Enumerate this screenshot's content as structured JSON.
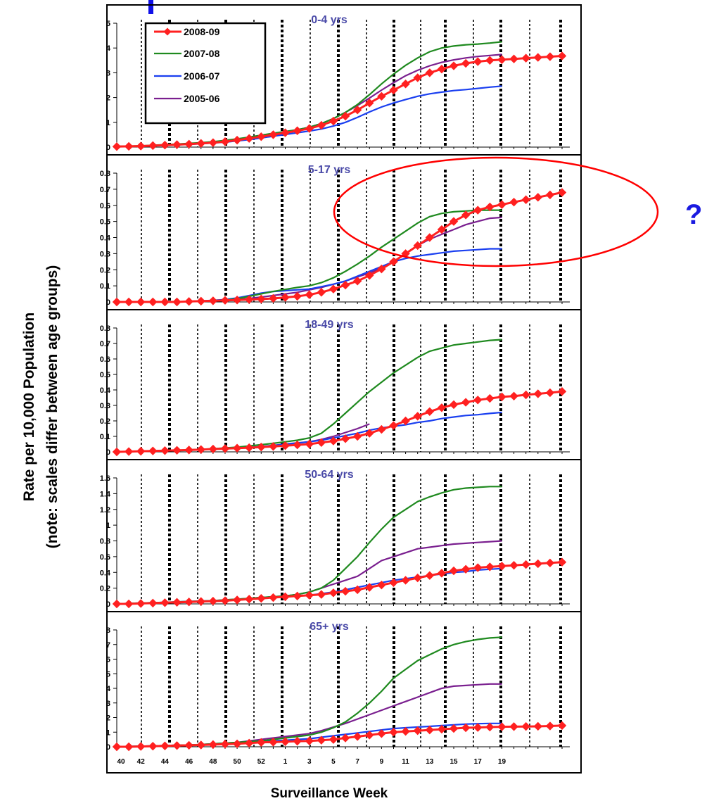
{
  "annotation": {
    "question_mark": "?",
    "highlight_color": "#ff0000"
  },
  "chart_data": {
    "type": "line",
    "xlabel": "Surveillance Week",
    "ylabel_line1": "Rate per 10,000 Population",
    "ylabel_line2": "(note: scales differ between age groups)",
    "x_tick_labels": [
      "40",
      "42",
      "44",
      "46",
      "48",
      "50",
      "52",
      "1",
      "3",
      "5",
      "7",
      "9",
      "11",
      "13",
      "15",
      "17",
      "19"
    ],
    "legend": {
      "placement": "top-left of first panel",
      "entries": [
        "2008-09",
        "2007-08",
        "2006-07",
        "2005-06"
      ]
    },
    "series_colors": {
      "2008-09": "#ff2020",
      "2007-08": "#1f8a1f",
      "2006-07": "#1a3ff0",
      "2005-06": "#7a1f8f"
    },
    "panels": [
      {
        "title": "0-4 yrs",
        "ylim": [
          0,
          5
        ],
        "yticks": [
          0,
          1,
          2,
          3,
          4,
          5
        ],
        "series": [
          {
            "name": "2008-09",
            "values": [
              0.02,
              0.03,
              0.04,
              0.06,
              0.08,
              0.1,
              0.12,
              0.15,
              0.18,
              0.22,
              0.28,
              0.35,
              0.42,
              0.5,
              0.58,
              0.66,
              0.75,
              0.88,
              1.05,
              1.25,
              1.5,
              1.78,
              2.05,
              2.3,
              2.55,
              2.8,
              3.0,
              3.15,
              3.28,
              3.38,
              3.45,
              3.5,
              3.53,
              3.56,
              3.59,
              3.62,
              3.65,
              3.68
            ]
          },
          {
            "name": "2007-08",
            "values": [
              0.03,
              0.04,
              0.05,
              0.07,
              0.1,
              0.12,
              0.15,
              0.18,
              0.22,
              0.27,
              0.33,
              0.4,
              0.48,
              0.56,
              0.63,
              0.7,
              0.8,
              0.95,
              1.15,
              1.4,
              1.72,
              2.12,
              2.55,
              2.95,
              3.3,
              3.6,
              3.85,
              4.0,
              4.08,
              4.13,
              4.16,
              4.2,
              4.25
            ]
          },
          {
            "name": "2006-07",
            "values": [
              0.02,
              0.03,
              0.04,
              0.05,
              0.07,
              0.09,
              0.11,
              0.14,
              0.17,
              0.2,
              0.25,
              0.3,
              0.37,
              0.44,
              0.51,
              0.58,
              0.65,
              0.73,
              0.85,
              1.0,
              1.2,
              1.42,
              1.62,
              1.78,
              1.92,
              2.05,
              2.15,
              2.22,
              2.28,
              2.32,
              2.37,
              2.42,
              2.46
            ]
          },
          {
            "name": "2005-06",
            "values": [
              0.02,
              0.03,
              0.05,
              0.06,
              0.08,
              0.1,
              0.13,
              0.16,
              0.2,
              0.25,
              0.31,
              0.38,
              0.46,
              0.54,
              0.62,
              0.7,
              0.8,
              0.95,
              1.15,
              1.4,
              1.68,
              1.98,
              2.3,
              2.6,
              2.88,
              3.1,
              3.28,
              3.42,
              3.52,
              3.6,
              3.66,
              3.7,
              3.74
            ]
          }
        ]
      },
      {
        "title": "5-17 yrs",
        "ylim": [
          0,
          0.8
        ],
        "yticks": [
          0,
          0.1,
          0.2,
          0.3,
          0.4,
          0.5,
          0.6,
          0.7,
          0.8
        ],
        "series": [
          {
            "name": "2008-09",
            "values": [
              0.0,
              0.0,
              0.0,
              0.0,
              0.0,
              0.0,
              0.003,
              0.005,
              0.007,
              0.01,
              0.012,
              0.015,
              0.018,
              0.022,
              0.028,
              0.035,
              0.045,
              0.06,
              0.08,
              0.105,
              0.13,
              0.165,
              0.205,
              0.25,
              0.3,
              0.35,
              0.4,
              0.45,
              0.5,
              0.54,
              0.57,
              0.59,
              0.605,
              0.62,
              0.635,
              0.65,
              0.665,
              0.68
            ]
          },
          {
            "name": "2007-08",
            "values": [
              0.0,
              0.0,
              0.0,
              0.0,
              0.0,
              0.0,
              0.003,
              0.005,
              0.008,
              0.012,
              0.02,
              0.035,
              0.05,
              0.065,
              0.078,
              0.09,
              0.1,
              0.12,
              0.15,
              0.19,
              0.235,
              0.285,
              0.34,
              0.39,
              0.44,
              0.49,
              0.53,
              0.55,
              0.56,
              0.565,
              0.57,
              0.57,
              0.57
            ]
          },
          {
            "name": "2006-07",
            "values": [
              0.0,
              0.0,
              0.0,
              0.0,
              0.0,
              0.0,
              0.003,
              0.006,
              0.01,
              0.015,
              0.025,
              0.04,
              0.055,
              0.065,
              0.07,
              0.075,
              0.08,
              0.095,
              0.11,
              0.13,
              0.16,
              0.19,
              0.22,
              0.25,
              0.27,
              0.285,
              0.295,
              0.305,
              0.315,
              0.32,
              0.325,
              0.33,
              0.33
            ]
          },
          {
            "name": "2005-06",
            "values": [
              0.0,
              0.0,
              0.0,
              0.0,
              0.0,
              0.0,
              0.002,
              0.004,
              0.007,
              0.01,
              0.015,
              0.022,
              0.03,
              0.04,
              0.05,
              0.06,
              0.075,
              0.09,
              0.11,
              0.13,
              0.155,
              0.18,
              0.21,
              0.25,
              0.3,
              0.35,
              0.39,
              0.42,
              0.45,
              0.48,
              0.5,
              0.52,
              0.525
            ]
          }
        ]
      },
      {
        "title": "18-49 yrs",
        "ylim": [
          0,
          0.8
        ],
        "yticks": [
          0,
          0.1,
          0.2,
          0.3,
          0.4,
          0.5,
          0.6,
          0.7,
          0.8
        ],
        "series": [
          {
            "name": "2008-09",
            "values": [
              0.0,
              0.002,
              0.004,
              0.006,
              0.008,
              0.01,
              0.012,
              0.015,
              0.018,
              0.021,
              0.024,
              0.027,
              0.031,
              0.035,
              0.04,
              0.045,
              0.05,
              0.06,
              0.07,
              0.085,
              0.1,
              0.12,
              0.145,
              0.17,
              0.2,
              0.23,
              0.26,
              0.285,
              0.305,
              0.32,
              0.335,
              0.345,
              0.355,
              0.36,
              0.368,
              0.375,
              0.382,
              0.39
            ]
          },
          {
            "name": "2007-08",
            "values": [
              0.0,
              0.002,
              0.004,
              0.006,
              0.008,
              0.01,
              0.013,
              0.016,
              0.02,
              0.025,
              0.03,
              0.038,
              0.046,
              0.055,
              0.065,
              0.075,
              0.09,
              0.12,
              0.18,
              0.25,
              0.32,
              0.39,
              0.45,
              0.51,
              0.56,
              0.61,
              0.65,
              0.67,
              0.69,
              0.7,
              0.71,
              0.72,
              0.725
            ]
          },
          {
            "name": "2006-07",
            "values": [
              0.0,
              0.002,
              0.004,
              0.006,
              0.008,
              0.01,
              0.012,
              0.015,
              0.018,
              0.021,
              0.024,
              0.028,
              0.033,
              0.04,
              0.048,
              0.056,
              0.065,
              0.075,
              0.09,
              0.105,
              0.12,
              0.14,
              0.155,
              0.165,
              0.175,
              0.19,
              0.2,
              0.215,
              0.225,
              0.235,
              0.24,
              0.248,
              0.255
            ]
          },
          {
            "name": "2005-06",
            "values": [
              0.0,
              0.002,
              0.004,
              0.006,
              0.008,
              0.01,
              0.012,
              0.015,
              0.018,
              0.021,
              0.024,
              0.028,
              0.034,
              0.042,
              0.05,
              0.058,
              0.065,
              0.08,
              0.1,
              0.125,
              0.15,
              0.18
            ]
          }
        ]
      },
      {
        "title": "50-64 yrs",
        "ylim": [
          0,
          1.6
        ],
        "yticks": [
          0,
          0.2,
          0.4,
          0.6,
          0.8,
          1,
          1.2,
          1.4,
          1.6
        ],
        "series": [
          {
            "name": "2008-09",
            "values": [
              0.0,
              0.0,
              0.005,
              0.01,
              0.015,
              0.02,
              0.025,
              0.03,
              0.035,
              0.04,
              0.05,
              0.06,
              0.07,
              0.08,
              0.09,
              0.1,
              0.11,
              0.12,
              0.14,
              0.16,
              0.18,
              0.21,
              0.24,
              0.27,
              0.3,
              0.33,
              0.36,
              0.39,
              0.42,
              0.44,
              0.46,
              0.47,
              0.48,
              0.49,
              0.5,
              0.51,
              0.52,
              0.53
            ]
          },
          {
            "name": "2007-08",
            "values": [
              0.0,
              0.005,
              0.01,
              0.015,
              0.02,
              0.025,
              0.03,
              0.035,
              0.04,
              0.05,
              0.06,
              0.07,
              0.08,
              0.09,
              0.1,
              0.12,
              0.15,
              0.2,
              0.3,
              0.45,
              0.6,
              0.78,
              0.95,
              1.1,
              1.2,
              1.3,
              1.36,
              1.41,
              1.45,
              1.47,
              1.48,
              1.49,
              1.49
            ]
          },
          {
            "name": "2006-07",
            "values": [
              0.0,
              0.005,
              0.01,
              0.015,
              0.02,
              0.025,
              0.03,
              0.035,
              0.04,
              0.045,
              0.05,
              0.06,
              0.07,
              0.08,
              0.09,
              0.1,
              0.11,
              0.13,
              0.15,
              0.18,
              0.21,
              0.24,
              0.27,
              0.3,
              0.32,
              0.34,
              0.36,
              0.38,
              0.4,
              0.41,
              0.43,
              0.44,
              0.45
            ]
          },
          {
            "name": "2005-06",
            "values": [
              0.0,
              0.005,
              0.01,
              0.015,
              0.02,
              0.025,
              0.03,
              0.035,
              0.04,
              0.05,
              0.06,
              0.07,
              0.08,
              0.09,
              0.1,
              0.12,
              0.15,
              0.2,
              0.25,
              0.3,
              0.35,
              0.45,
              0.55,
              0.6,
              0.65,
              0.7,
              0.72,
              0.74,
              0.76,
              0.77,
              0.78,
              0.79,
              0.8
            ]
          }
        ]
      },
      {
        "title": "65+ yrs",
        "ylim": [
          0,
          8
        ],
        "yticks": [
          0,
          1,
          2,
          3,
          4,
          5,
          6,
          7,
          8
        ],
        "series": [
          {
            "name": "2008-09",
            "values": [
              0.0,
              0.0,
              0.02,
              0.04,
              0.06,
              0.08,
              0.1,
              0.12,
              0.15,
              0.18,
              0.2,
              0.25,
              0.3,
              0.32,
              0.35,
              0.38,
              0.4,
              0.45,
              0.5,
              0.6,
              0.7,
              0.8,
              0.9,
              1.0,
              1.05,
              1.1,
              1.15,
              1.2,
              1.25,
              1.3,
              1.32,
              1.35,
              1.37,
              1.38,
              1.39,
              1.4,
              1.42,
              1.45
            ]
          },
          {
            "name": "2007-08",
            "values": [
              0.0,
              0.02,
              0.04,
              0.06,
              0.08,
              0.1,
              0.12,
              0.15,
              0.2,
              0.25,
              0.3,
              0.35,
              0.4,
              0.5,
              0.6,
              0.7,
              0.8,
              1.0,
              1.3,
              1.7,
              2.3,
              3.0,
              3.8,
              4.7,
              5.3,
              5.9,
              6.3,
              6.7,
              7.0,
              7.2,
              7.35,
              7.45,
              7.5
            ]
          },
          {
            "name": "2006-07",
            "values": [
              0.0,
              0.02,
              0.04,
              0.06,
              0.08,
              0.1,
              0.12,
              0.15,
              0.18,
              0.22,
              0.26,
              0.3,
              0.35,
              0.4,
              0.45,
              0.5,
              0.55,
              0.65,
              0.75,
              0.85,
              0.95,
              1.05,
              1.15,
              1.25,
              1.3,
              1.35,
              1.4,
              1.45,
              1.5,
              1.55,
              1.58,
              1.6,
              1.6
            ]
          },
          {
            "name": "2005-06",
            "values": [
              0.0,
              0.02,
              0.04,
              0.06,
              0.08,
              0.1,
              0.12,
              0.15,
              0.2,
              0.25,
              0.3,
              0.4,
              0.5,
              0.6,
              0.7,
              0.8,
              0.9,
              1.1,
              1.35,
              1.6,
              1.9,
              2.2,
              2.5,
              2.8,
              3.1,
              3.4,
              3.7,
              4.0,
              4.15,
              4.2,
              4.25,
              4.3,
              4.3
            ]
          }
        ]
      }
    ]
  }
}
